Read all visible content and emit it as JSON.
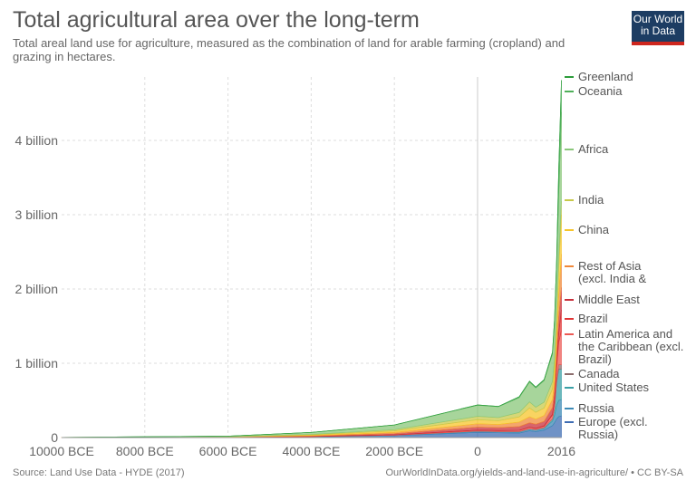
{
  "header": {
    "title": "Total agricultural area over the long-term",
    "subtitle": "Total areal land use for agriculture, measured as the combination of land for arable farming (cropland) and grazing in hectares.",
    "logo_text": "Our World in Data"
  },
  "footer": {
    "source": "Source: Land Use Data - HYDE (2017)",
    "url": "OurWorldInData.org/yields-and-land-use-in-agriculture/ • CC BY-SA"
  },
  "chart_data": {
    "type": "area",
    "stacked": true,
    "title": "Total agricultural area over the long-term",
    "xlabel": "",
    "ylabel": "",
    "xlim": [
      -10000,
      2016
    ],
    "ylim": [
      0,
      4850000000
    ],
    "grid": true,
    "legend_placement": "right",
    "x_ticks": [
      {
        "value": -10000,
        "label": "10000 BCE"
      },
      {
        "value": -8000,
        "label": "8000 BCE"
      },
      {
        "value": -6000,
        "label": "6000 BCE"
      },
      {
        "value": -4000,
        "label": "4000 BCE"
      },
      {
        "value": -2000,
        "label": "2000 BCE"
      },
      {
        "value": 0,
        "label": "0"
      },
      {
        "value": 2016,
        "label": "2016"
      }
    ],
    "y_ticks": [
      {
        "value": 0,
        "label": "0"
      },
      {
        "value": 1000000000,
        "label": "1 billion"
      },
      {
        "value": 2000000000,
        "label": "2 billion"
      },
      {
        "value": 3000000000,
        "label": "3 billion"
      },
      {
        "value": 4000000000,
        "label": "4 billion"
      }
    ],
    "x": [
      -10000,
      -6000,
      -4000,
      -2000,
      0,
      500,
      1000,
      1250,
      1400,
      1600,
      1800,
      1850,
      1900,
      1950,
      2016
    ],
    "value_unit": "billion hectares",
    "series": [
      {
        "name": "Europe (excl. Russia)",
        "color": "#3f6db3",
        "values": [
          0.0004,
          0.003,
          0.01,
          0.024,
          0.07,
          0.065,
          0.06,
          0.09,
          0.08,
          0.1,
          0.16,
          0.2,
          0.25,
          0.28,
          0.29
        ]
      },
      {
        "name": "Russia",
        "color": "#3d8ab6",
        "values": [
          0.0001,
          0.001,
          0.002,
          0.005,
          0.012,
          0.012,
          0.015,
          0.02,
          0.02,
          0.025,
          0.06,
          0.1,
          0.18,
          0.22,
          0.22
        ]
      },
      {
        "name": "United States",
        "color": "#3ba0a6",
        "values": [
          0,
          0,
          0.001,
          0.002,
          0.004,
          0.004,
          0.005,
          0.006,
          0.006,
          0.008,
          0.03,
          0.09,
          0.3,
          0.42,
          0.41
        ]
      },
      {
        "name": "Canada",
        "color": "#8c6d6d",
        "values": [
          0,
          0,
          0,
          0,
          0,
          0,
          0,
          0,
          0,
          0,
          0.002,
          0.01,
          0.04,
          0.06,
          0.06
        ]
      },
      {
        "name": "Latin America and the Caribbean (excl. Brazil)",
        "color": "#ec5a55",
        "values": [
          0.0001,
          0.001,
          0.002,
          0.005,
          0.012,
          0.012,
          0.015,
          0.02,
          0.015,
          0.02,
          0.05,
          0.09,
          0.16,
          0.3,
          0.46
        ]
      },
      {
        "name": "Brazil",
        "color": "#e03535",
        "values": [
          0,
          0,
          0,
          0.001,
          0.002,
          0.002,
          0.003,
          0.003,
          0.003,
          0.004,
          0.01,
          0.02,
          0.04,
          0.12,
          0.28
        ]
      },
      {
        "name": "Middle East",
        "color": "#c9303b",
        "values": [
          0.0003,
          0.002,
          0.006,
          0.015,
          0.04,
          0.038,
          0.05,
          0.06,
          0.055,
          0.06,
          0.09,
          0.12,
          0.16,
          0.22,
          0.3
        ]
      },
      {
        "name": "Rest of Asia (excl. India & China)",
        "color": "#f0883a",
        "values": [
          0.0003,
          0.002,
          0.007,
          0.017,
          0.045,
          0.043,
          0.06,
          0.08,
          0.07,
          0.08,
          0.11,
          0.14,
          0.2,
          0.3,
          0.45
        ]
      },
      {
        "name": "China",
        "color": "#f7c52c",
        "values": [
          0.0004,
          0.002,
          0.008,
          0.02,
          0.055,
          0.05,
          0.07,
          0.12,
          0.09,
          0.1,
          0.14,
          0.17,
          0.22,
          0.35,
          0.53
        ]
      },
      {
        "name": "India",
        "color": "#c8c94a",
        "values": [
          0.0003,
          0.002,
          0.007,
          0.017,
          0.045,
          0.044,
          0.06,
          0.08,
          0.07,
          0.08,
          0.1,
          0.12,
          0.14,
          0.17,
          0.18
        ]
      },
      {
        "name": "Africa",
        "color": "#8ac77a",
        "values": [
          0.0011,
          0.007,
          0.026,
          0.062,
          0.15,
          0.145,
          0.2,
          0.27,
          0.26,
          0.29,
          0.37,
          0.47,
          0.58,
          0.82,
          1.2
        ]
      },
      {
        "name": "Oceania",
        "color": "#4fb05a",
        "values": [
          0,
          0,
          0.001,
          0.002,
          0.005,
          0.005,
          0.012,
          0.011,
          0.011,
          0.013,
          0.028,
          0.07,
          0.13,
          0.35,
          0.43
        ]
      },
      {
        "name": "Greenland",
        "color": "#2c9c3a",
        "values": [
          0,
          0,
          0,
          0,
          0,
          0,
          0,
          0,
          0,
          0,
          0,
          0,
          0,
          0.002,
          0.0024
        ]
      }
    ]
  }
}
